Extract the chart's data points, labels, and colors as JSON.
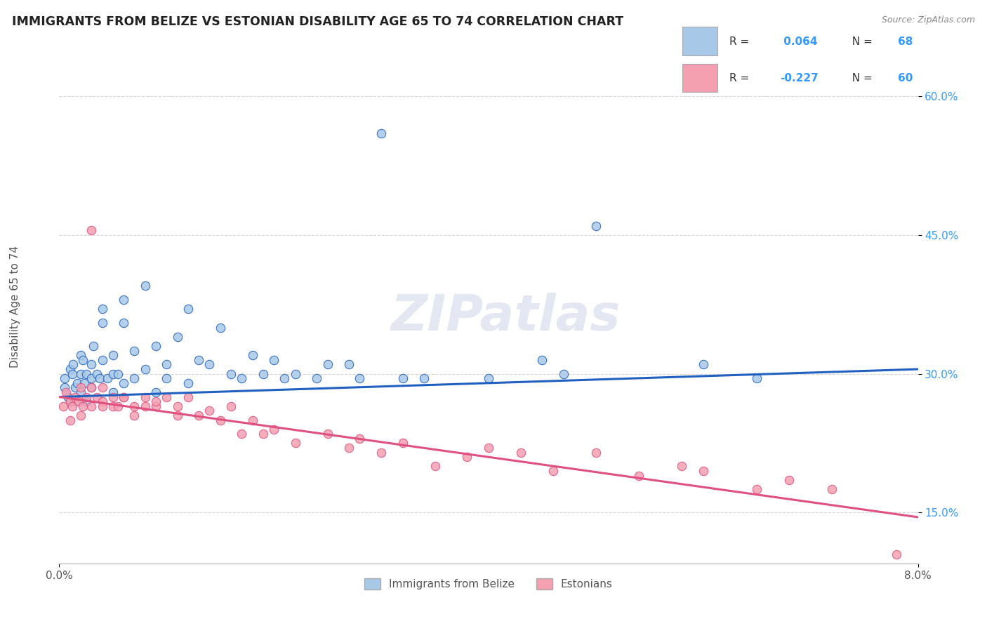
{
  "title": "IMMIGRANTS FROM BELIZE VS ESTONIAN DISABILITY AGE 65 TO 74 CORRELATION CHART",
  "source": "Source: ZipAtlas.com",
  "ylabel": "Disability Age 65 to 74",
  "yticks": [
    0.15,
    0.3,
    0.45,
    0.6
  ],
  "xmin": 0.0,
  "xmax": 0.08,
  "ymin": 0.095,
  "ymax": 0.65,
  "blue_R": 0.064,
  "blue_N": 68,
  "pink_R": -0.227,
  "pink_N": 60,
  "blue_color": "#a8c8e8",
  "pink_color": "#f4a0b0",
  "blue_line_color": "#2060c0",
  "pink_line_color": "#e05080",
  "legend_label_blue": "Immigrants from Belize",
  "legend_label_pink": "Estonians",
  "watermark": "ZIPatlas",
  "blue_line_y0": 0.275,
  "blue_line_y1": 0.305,
  "pink_line_y0": 0.275,
  "pink_line_y1": 0.145,
  "blue_scatter_x": [
    0.0005,
    0.0005,
    0.0008,
    0.001,
    0.001,
    0.0012,
    0.0013,
    0.0015,
    0.0015,
    0.0017,
    0.002,
    0.002,
    0.002,
    0.0022,
    0.0023,
    0.0025,
    0.0025,
    0.003,
    0.003,
    0.003,
    0.0032,
    0.0035,
    0.0038,
    0.004,
    0.004,
    0.004,
    0.0045,
    0.005,
    0.005,
    0.005,
    0.0055,
    0.006,
    0.006,
    0.006,
    0.007,
    0.007,
    0.008,
    0.008,
    0.009,
    0.009,
    0.01,
    0.01,
    0.011,
    0.012,
    0.012,
    0.013,
    0.014,
    0.015,
    0.016,
    0.017,
    0.018,
    0.019,
    0.02,
    0.021,
    0.022,
    0.024,
    0.025,
    0.027,
    0.028,
    0.03,
    0.032,
    0.034,
    0.04,
    0.045,
    0.047,
    0.05,
    0.06,
    0.065
  ],
  "blue_scatter_y": [
    0.285,
    0.295,
    0.275,
    0.305,
    0.27,
    0.3,
    0.31,
    0.285,
    0.27,
    0.29,
    0.3,
    0.32,
    0.28,
    0.315,
    0.29,
    0.3,
    0.27,
    0.295,
    0.31,
    0.285,
    0.33,
    0.3,
    0.295,
    0.37,
    0.355,
    0.315,
    0.295,
    0.32,
    0.3,
    0.28,
    0.3,
    0.38,
    0.355,
    0.29,
    0.325,
    0.295,
    0.395,
    0.305,
    0.33,
    0.28,
    0.295,
    0.31,
    0.34,
    0.37,
    0.29,
    0.315,
    0.31,
    0.35,
    0.3,
    0.295,
    0.32,
    0.3,
    0.315,
    0.295,
    0.3,
    0.295,
    0.31,
    0.31,
    0.295,
    0.56,
    0.295,
    0.295,
    0.295,
    0.315,
    0.3,
    0.46,
    0.31,
    0.295
  ],
  "pink_scatter_x": [
    0.0004,
    0.0006,
    0.001,
    0.001,
    0.0012,
    0.0015,
    0.0018,
    0.002,
    0.002,
    0.0022,
    0.0025,
    0.003,
    0.003,
    0.003,
    0.0035,
    0.004,
    0.004,
    0.004,
    0.005,
    0.005,
    0.0055,
    0.006,
    0.006,
    0.007,
    0.007,
    0.008,
    0.008,
    0.009,
    0.009,
    0.01,
    0.011,
    0.011,
    0.012,
    0.013,
    0.014,
    0.015,
    0.016,
    0.017,
    0.018,
    0.019,
    0.02,
    0.022,
    0.025,
    0.027,
    0.028,
    0.03,
    0.032,
    0.035,
    0.038,
    0.04,
    0.043,
    0.046,
    0.05,
    0.054,
    0.058,
    0.06,
    0.065,
    0.068,
    0.072,
    0.078
  ],
  "pink_scatter_y": [
    0.265,
    0.28,
    0.27,
    0.25,
    0.265,
    0.275,
    0.27,
    0.285,
    0.255,
    0.265,
    0.275,
    0.265,
    0.285,
    0.455,
    0.275,
    0.27,
    0.265,
    0.285,
    0.275,
    0.265,
    0.265,
    0.275,
    0.275,
    0.265,
    0.255,
    0.275,
    0.265,
    0.265,
    0.27,
    0.275,
    0.265,
    0.255,
    0.275,
    0.255,
    0.26,
    0.25,
    0.265,
    0.235,
    0.25,
    0.235,
    0.24,
    0.225,
    0.235,
    0.22,
    0.23,
    0.215,
    0.225,
    0.2,
    0.21,
    0.22,
    0.215,
    0.195,
    0.215,
    0.19,
    0.2,
    0.195,
    0.175,
    0.185,
    0.175,
    0.105
  ]
}
